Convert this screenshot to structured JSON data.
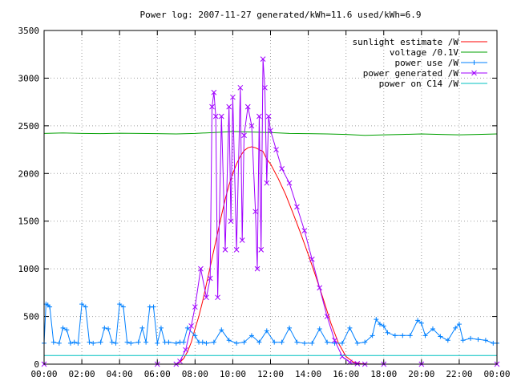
{
  "chart_data": {
    "type": "line",
    "title": "Power log: 2007-11-27 generated/kWh=11.6 used/kWh=6.9",
    "xlabel": "",
    "ylabel": "",
    "xlim": [
      0,
      24
    ],
    "ylim": [
      0,
      3500
    ],
    "grid": true,
    "legend_position": "top-right",
    "x_ticks": [
      {
        "value": 0,
        "label": "00:00"
      },
      {
        "value": 2,
        "label": "02:00"
      },
      {
        "value": 4,
        "label": "04:00"
      },
      {
        "value": 6,
        "label": "06:00"
      },
      {
        "value": 8,
        "label": "08:00"
      },
      {
        "value": 10,
        "label": "10:00"
      },
      {
        "value": 12,
        "label": "12:00"
      },
      {
        "value": 14,
        "label": "14:00"
      },
      {
        "value": 16,
        "label": "16:00"
      },
      {
        "value": 18,
        "label": "18:00"
      },
      {
        "value": 20,
        "label": "20:00"
      },
      {
        "value": 22,
        "label": "22:00"
      },
      {
        "value": 24,
        "label": "00:00"
      }
    ],
    "y_ticks": [
      {
        "value": 0,
        "label": "0"
      },
      {
        "value": 500,
        "label": "500"
      },
      {
        "value": 1000,
        "label": "1000"
      },
      {
        "value": 1500,
        "label": "1500"
      },
      {
        "value": 2000,
        "label": "2000"
      },
      {
        "value": 2500,
        "label": "2500"
      },
      {
        "value": 3000,
        "label": "3000"
      },
      {
        "value": 3500,
        "label": "3500"
      }
    ],
    "series": [
      {
        "name": "sunlight estimate /W",
        "color": "#ff0000",
        "marker": "none",
        "x": [
          0,
          7.0,
          7.2,
          7.4,
          7.6,
          7.8,
          8.0,
          8.2,
          8.4,
          8.6,
          8.8,
          9.0,
          9.2,
          9.4,
          9.6,
          9.8,
          10.0,
          10.2,
          10.4,
          10.6,
          10.8,
          11.0,
          11.2,
          11.4,
          11.6,
          11.8,
          12.0,
          12.4,
          12.8,
          13.2,
          13.6,
          14.0,
          14.4,
          14.8,
          15.2,
          15.6,
          16.0,
          16.4,
          16.8,
          17.2,
          24
        ],
        "y": [
          0,
          0,
          20,
          60,
          130,
          230,
          370,
          500,
          660,
          840,
          1020,
          1200,
          1380,
          1560,
          1730,
          1880,
          2000,
          2100,
          2180,
          2240,
          2270,
          2280,
          2270,
          2250,
          2230,
          2150,
          2100,
          1950,
          1780,
          1580,
          1370,
          1150,
          920,
          680,
          430,
          220,
          80,
          20,
          5,
          0,
          0
        ]
      },
      {
        "name": "voltage /0.1V",
        "color": "#00a000",
        "marker": "none",
        "x": [
          0,
          1,
          2,
          3,
          4,
          5,
          6,
          7,
          8,
          9,
          10,
          11,
          12,
          13,
          14,
          15,
          16,
          17,
          18,
          19,
          20,
          21,
          22,
          23,
          24
        ],
        "y": [
          2420,
          2425,
          2420,
          2418,
          2422,
          2420,
          2418,
          2415,
          2420,
          2430,
          2440,
          2435,
          2430,
          2420,
          2418,
          2415,
          2410,
          2400,
          2405,
          2410,
          2415,
          2410,
          2405,
          2410,
          2415
        ]
      },
      {
        "name": "power use /W",
        "color": "#0080ff",
        "marker": "plus",
        "x": [
          0,
          0.1,
          0.2,
          0.3,
          0.5,
          0.8,
          1.0,
          1.2,
          1.4,
          1.6,
          1.8,
          2.0,
          2.2,
          2.4,
          2.6,
          3.0,
          3.2,
          3.4,
          3.6,
          3.8,
          4.0,
          4.2,
          4.4,
          4.6,
          5.0,
          5.2,
          5.4,
          5.6,
          5.8,
          6.0,
          6.2,
          6.4,
          6.6,
          7.0,
          7.2,
          7.4,
          7.6,
          8.0,
          8.2,
          8.4,
          8.6,
          9.0,
          9.4,
          9.8,
          10.2,
          10.6,
          11.0,
          11.4,
          11.8,
          12.2,
          12.6,
          13.0,
          13.4,
          13.8,
          14.2,
          14.6,
          15.0,
          15.4,
          15.8,
          16.2,
          16.6,
          17.0,
          17.4,
          17.6,
          17.8,
          18.0,
          18.2,
          18.6,
          19.0,
          19.4,
          19.8,
          20.0,
          20.2,
          20.6,
          21.0,
          21.4,
          21.8,
          22.0,
          22.2,
          22.6,
          23.0,
          23.4,
          23.8,
          24
        ],
        "y": [
          220,
          630,
          620,
          600,
          230,
          220,
          380,
          360,
          220,
          230,
          220,
          630,
          600,
          230,
          220,
          230,
          380,
          370,
          230,
          220,
          630,
          600,
          230,
          220,
          230,
          380,
          230,
          600,
          600,
          220,
          380,
          230,
          230,
          220,
          230,
          230,
          380,
          300,
          230,
          230,
          220,
          230,
          360,
          250,
          220,
          230,
          300,
          230,
          350,
          230,
          230,
          380,
          230,
          220,
          220,
          370,
          230,
          220,
          220,
          380,
          220,
          230,
          300,
          470,
          420,
          400,
          330,
          300,
          300,
          300,
          460,
          430,
          300,
          370,
          290,
          250,
          380,
          420,
          250,
          270,
          260,
          250,
          220,
          220
        ]
      },
      {
        "name": "power generated /W",
        "color": "#a000ff",
        "marker": "x",
        "x": [
          0,
          6.0,
          7.0,
          7.2,
          7.5,
          7.8,
          8.0,
          8.3,
          8.6,
          8.8,
          8.9,
          9.0,
          9.1,
          9.2,
          9.4,
          9.6,
          9.8,
          9.9,
          10.0,
          10.2,
          10.4,
          10.5,
          10.6,
          10.8,
          11.0,
          11.2,
          11.3,
          11.4,
          11.5,
          11.6,
          11.7,
          11.8,
          11.9,
          12.0,
          12.3,
          12.6,
          13.0,
          13.4,
          13.8,
          14.2,
          14.6,
          15.0,
          15.4,
          15.8,
          16.2,
          16.6,
          17.0,
          18.0,
          20.0,
          24
        ],
        "y": [
          0,
          0,
          0,
          30,
          150,
          400,
          600,
          1000,
          700,
          900,
          2700,
          2850,
          2600,
          700,
          2600,
          1200,
          2700,
          1500,
          2800,
          1200,
          2900,
          1300,
          2400,
          2700,
          2500,
          1600,
          1000,
          2600,
          1200,
          3200,
          2900,
          1900,
          2600,
          2450,
          2250,
          2050,
          1900,
          1650,
          1400,
          1100,
          800,
          500,
          250,
          80,
          20,
          5,
          0,
          0,
          0,
          0
        ]
      },
      {
        "name": "power on C14 /W",
        "color": "#00c0c0",
        "marker": "none",
        "x": [
          0,
          24
        ],
        "y": [
          90,
          90
        ]
      }
    ]
  }
}
